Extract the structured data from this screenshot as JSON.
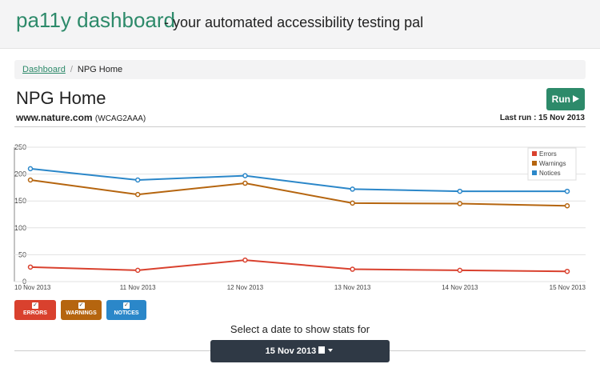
{
  "header": {
    "title": "pa11y dashboard",
    "tagline": "- your automated accessibility testing pal"
  },
  "breadcrumb": {
    "link": "Dashboard",
    "current": "NPG Home"
  },
  "page": {
    "title": "NPG Home",
    "run_button": "Run",
    "url": "www.nature.com",
    "standard": "(WCAG2AAA)",
    "last_run": "Last run : 15 Nov 2013"
  },
  "chart_data": {
    "type": "line",
    "categories": [
      "10 Nov 2013",
      "11 Nov 2013",
      "12 Nov 2013",
      "13 Nov 2013",
      "14 Nov 2013",
      "15 Nov 2013"
    ],
    "series": [
      {
        "name": "Errors",
        "color": "#d9412e",
        "values": [
          27,
          21,
          40,
          23,
          21,
          19
        ]
      },
      {
        "name": "Warnings",
        "color": "#b5650f",
        "values": [
          189,
          162,
          183,
          146,
          145,
          141
        ]
      },
      {
        "name": "Notices",
        "color": "#2b87c9",
        "values": [
          210,
          189,
          197,
          172,
          168,
          168
        ]
      }
    ],
    "ylim": [
      0,
      250
    ],
    "yticks": [
      0,
      50,
      100,
      150,
      200,
      250
    ],
    "grid": true,
    "legend": "upper right"
  },
  "toggles": [
    "ERRORS",
    "WARNINGS",
    "NOTICES"
  ],
  "date_select": {
    "prompt": "Select a date to show stats for",
    "selected": "15 Nov 2013"
  }
}
